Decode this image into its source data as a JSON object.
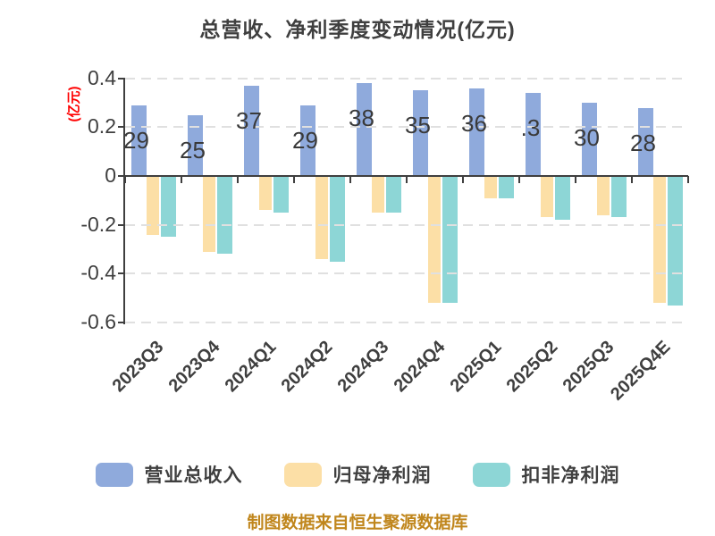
{
  "title": "总营收、净利季度变动情况(亿元)",
  "y_axis": {
    "unit_label": "(亿元)",
    "unit_color": "#ff0000",
    "ticks": [
      {
        "label": "0.4",
        "value": 0.4
      },
      {
        "label": "0.2",
        "value": 0.2
      },
      {
        "label": "0",
        "value": 0
      },
      {
        "label": "-0.2",
        "value": -0.2
      },
      {
        "label": "-0.4",
        "value": -0.4
      },
      {
        "label": "-0.6",
        "value": -0.6
      }
    ]
  },
  "chart_data": {
    "type": "bar",
    "title": "总营收、净利季度变动情况(亿元)",
    "categories": [
      "2023Q3",
      "2023Q4",
      "2024Q1",
      "2024Q2",
      "2024Q3",
      "2024Q4",
      "2025Q1",
      "2025Q2",
      "2025Q3",
      "2025Q4E"
    ],
    "series": [
      {
        "key": "total-revenue",
        "name": "营业总收入",
        "color": "#8FAADC",
        "values": [
          0.29,
          0.25,
          0.37,
          0.29,
          0.38,
          0.35,
          0.36,
          0.34,
          0.3,
          0.28
        ]
      },
      {
        "key": "net-profit",
        "name": "归母净利润",
        "color": "#FCDFA6",
        "values": [
          -0.24,
          -0.31,
          -0.14,
          -0.34,
          -0.15,
          -0.52,
          -0.09,
          -0.17,
          -0.16,
          -0.52
        ]
      },
      {
        "key": "non-gaap-net-profit",
        "name": "扣非净利润",
        "color": "#8DD6D6",
        "values": [
          -0.25,
          -0.32,
          -0.15,
          -0.35,
          -0.15,
          -0.52,
          -0.09,
          -0.18,
          -0.17,
          -0.53
        ]
      }
    ],
    "bar_labels": [
      "29",
      "25",
      "37",
      "29",
      "38",
      "35",
      "36",
      ".3",
      "30",
      "28"
    ],
    "ylim": [
      -0.6,
      0.4
    ],
    "grid": true,
    "legend_position": "bottom"
  },
  "legend": {
    "items": [
      {
        "label": "营业总收入",
        "color": "#8FAADC"
      },
      {
        "label": "归母净利润",
        "color": "#FCDFA6"
      },
      {
        "label": "扣非净利润",
        "color": "#8DD6D6"
      }
    ]
  },
  "caption": {
    "text": "制图数据来自恒生聚源数据库",
    "color": "#C0861C"
  },
  "colors": {
    "axis": "#3f3f3f",
    "gridline": "#e0e0e0",
    "background": "#ffffff"
  }
}
